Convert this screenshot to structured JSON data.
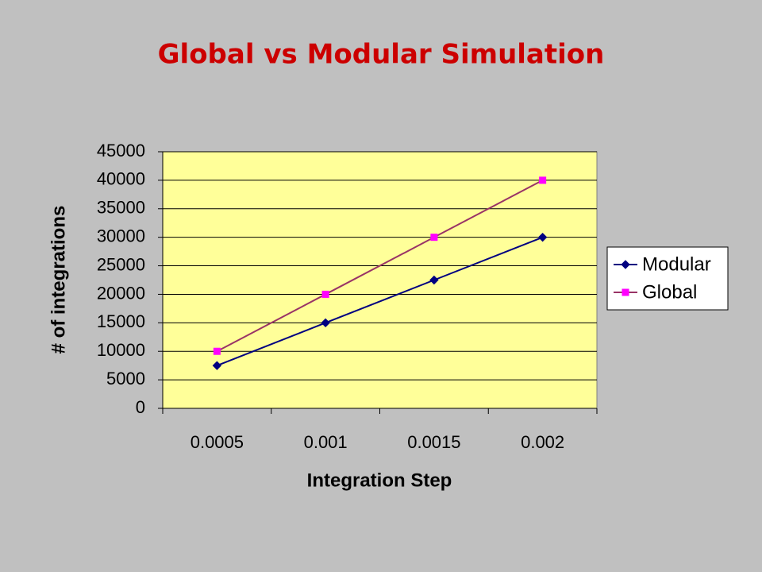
{
  "chart_data": {
    "type": "line",
    "title": "Global vs Modular Simulation",
    "x_label": "Integration Step",
    "y_label": "# of integrations",
    "categories": [
      "0.0005",
      "0.001",
      "0.0015",
      "0.002"
    ],
    "series": [
      {
        "name": "Modular",
        "color": "#000080",
        "marker": "diamond",
        "marker_color": "#000080",
        "values": [
          7500,
          15000,
          22500,
          30000
        ]
      },
      {
        "name": "Global",
        "color": "#993366",
        "marker": "square",
        "marker_color": "#ff00ff",
        "values": [
          10000,
          20000,
          30000,
          40000
        ]
      }
    ],
    "ylim": [
      0,
      45000
    ],
    "yticks": [
      0,
      5000,
      10000,
      15000,
      20000,
      25000,
      30000,
      35000,
      40000,
      45000
    ],
    "grid": true,
    "legend": "right"
  }
}
